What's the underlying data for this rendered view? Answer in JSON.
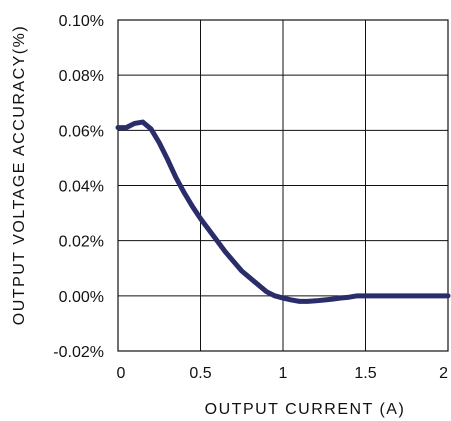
{
  "chart_data": {
    "type": "line",
    "title": "",
    "xlabel": "OUTPUT CURRENT (A)",
    "ylabel": "OUTPUT VOLTAGE ACCURACY(%)",
    "xlim": [
      0,
      2
    ],
    "ylim": [
      -0.02,
      0.1
    ],
    "x_ticks": [
      0,
      0.5,
      1,
      1.5,
      2
    ],
    "x_tick_labels": [
      "0",
      "0.5",
      "1",
      "1.5",
      "2"
    ],
    "y_ticks": [
      -0.02,
      0,
      0.02,
      0.04,
      0.06,
      0.08,
      0.1
    ],
    "y_tick_labels": [
      "-0.02%",
      "0.00%",
      "0.02%",
      "0.04%",
      "0.06%",
      "0.08%",
      "0.10%"
    ],
    "grid": true,
    "legend": "none",
    "series": [
      {
        "color": "#2b2d6b",
        "x": [
          0,
          0.05,
          0.1,
          0.15,
          0.2,
          0.25,
          0.3,
          0.35,
          0.4,
          0.45,
          0.5,
          0.55,
          0.6,
          0.65,
          0.7,
          0.75,
          0.8,
          0.85,
          0.9,
          0.95,
          1.0,
          1.05,
          1.1,
          1.15,
          1.2,
          1.25,
          1.3,
          1.35,
          1.4,
          1.45,
          1.5,
          1.6,
          1.7,
          1.8,
          1.9,
          2.0
        ],
        "values": [
          0.061,
          0.061,
          0.0625,
          0.063,
          0.0605,
          0.0555,
          0.0495,
          0.043,
          0.0375,
          0.0325,
          0.028,
          0.024,
          0.02,
          0.016,
          0.0125,
          0.009,
          0.0065,
          0.004,
          0.0015,
          0.0,
          -0.0008,
          -0.0015,
          -0.002,
          -0.002,
          -0.0018,
          -0.0015,
          -0.0012,
          -0.0008,
          -0.0005,
          0.0,
          0.0,
          0.0,
          0.0,
          0.0,
          0.0,
          0.0
        ]
      }
    ]
  }
}
